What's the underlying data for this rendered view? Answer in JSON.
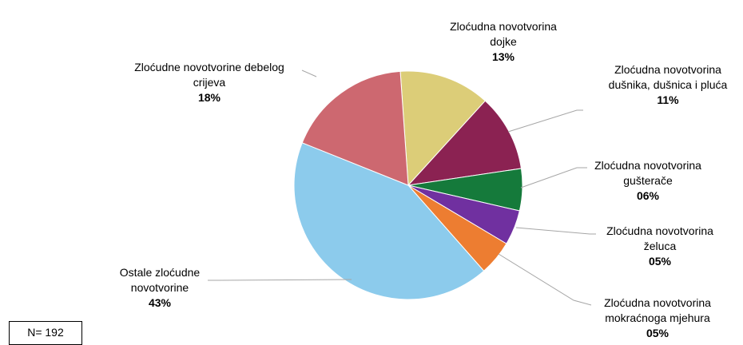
{
  "chart_data": {
    "type": "pie",
    "slices": [
      {
        "label": [
          "Zloćudna novotvorina",
          "dojke"
        ],
        "pct_label": "13%",
        "value": 13,
        "color": "#dccd78"
      },
      {
        "label": [
          "Zloćudna novotvorina",
          "dušnika, dušnica i pluća"
        ],
        "pct_label": "11%",
        "value": 11,
        "color": "#8b2252"
      },
      {
        "label": [
          "Zloćudna novotvorina",
          "gušterače"
        ],
        "pct_label": "06%",
        "value": 6,
        "color": "#157a3b"
      },
      {
        "label": [
          "Zloćudna novotvorina",
          "želuca"
        ],
        "pct_label": "05%",
        "value": 5,
        "color": "#7030a0"
      },
      {
        "label": [
          "Zloćudna novotvorina",
          "mokraćnoga mjehura"
        ],
        "pct_label": "05%",
        "value": 5,
        "color": "#ed7d31"
      },
      {
        "label": [
          "Ostale zloćudne",
          "novotvorine"
        ],
        "pct_label": "43%",
        "value": 43,
        "color": "#8ccbec"
      },
      {
        "label": [
          "Zloćudne novotvorine debelog",
          "crijeva"
        ],
        "pct_label": "18%",
        "value": 18,
        "color": "#cd6870"
      }
    ]
  },
  "sample_size": "N= 192"
}
